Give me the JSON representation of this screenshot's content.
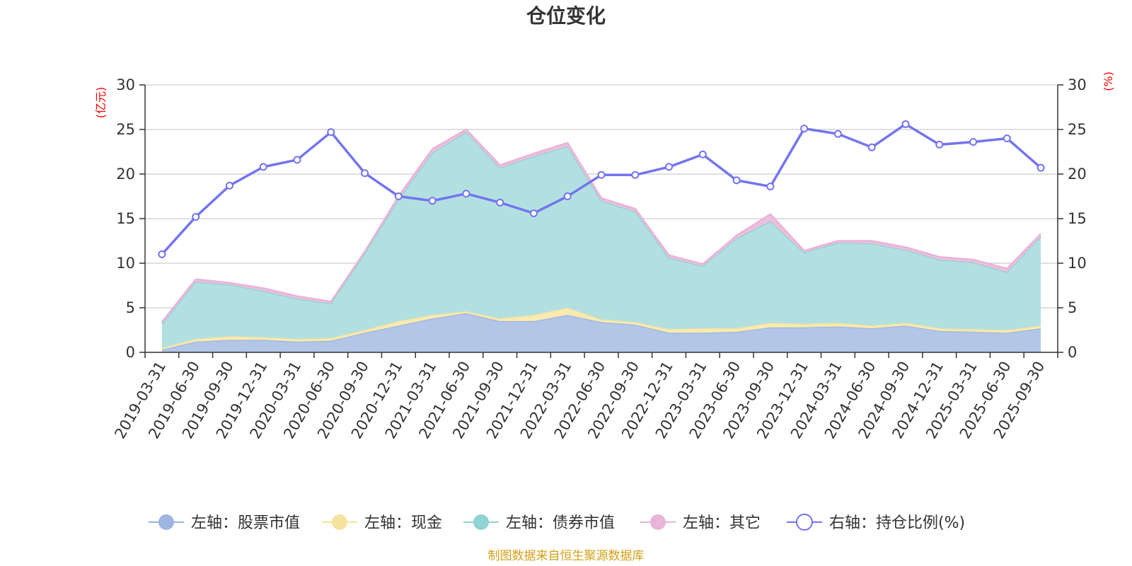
{
  "chart_data": {
    "type": "area",
    "title": "仓位变化",
    "left_axis_unit": "(亿元)",
    "right_axis_unit": "(%)",
    "ylim_left": [
      0,
      30
    ],
    "ylim_right": [
      0,
      30
    ],
    "y_ticks": [
      "0",
      "5",
      "10",
      "15",
      "20",
      "25",
      "30"
    ],
    "categories": [
      "2019-03-31",
      "2019-06-30",
      "2019-09-30",
      "2019-12-31",
      "2020-03-31",
      "2020-06-30",
      "2020-09-30",
      "2020-12-31",
      "2021-03-31",
      "2021-06-30",
      "2021-09-30",
      "2021-12-31",
      "2022-03-31",
      "2022-06-30",
      "2022-09-30",
      "2022-12-31",
      "2023-03-31",
      "2023-06-30",
      "2023-09-30",
      "2023-12-31",
      "2024-03-31",
      "2024-06-30",
      "2024-09-30",
      "2024-12-31",
      "2025-03-31",
      "2025-06-30",
      "2025-09-30"
    ],
    "stacked_series": [
      {
        "name": "左轴：股票市值",
        "color": "#9db5e0",
        "fill": "#b3c6e8",
        "values": [
          0.3,
          1.2,
          1.4,
          1.4,
          1.2,
          1.3,
          2.2,
          3.0,
          3.8,
          4.4,
          3.5,
          3.5,
          4.2,
          3.4,
          3.1,
          2.2,
          2.2,
          2.3,
          2.8,
          2.8,
          2.9,
          2.7,
          3.0,
          2.4,
          2.3,
          2.2,
          2.7
        ]
      },
      {
        "name": "左轴：现金",
        "color": "#f5e29c",
        "fill": "#f8eab0",
        "values": [
          0.2,
          0.3,
          0.4,
          0.3,
          0.3,
          0.3,
          0.3,
          0.5,
          0.4,
          0.2,
          0.3,
          0.7,
          0.8,
          0.3,
          0.3,
          0.4,
          0.5,
          0.4,
          0.5,
          0.4,
          0.4,
          0.3,
          0.3,
          0.3,
          0.3,
          0.3,
          0.3
        ]
      },
      {
        "name": "左轴：债券市值",
        "color": "#8fd3d3",
        "fill": "#b2e0e0",
        "values": [
          2.7,
          6.4,
          5.8,
          5.2,
          4.5,
          3.9,
          8.6,
          13.7,
          18.2,
          20.1,
          16.9,
          17.8,
          18.1,
          13.3,
          12.4,
          8.0,
          7.0,
          10.1,
          11.4,
          8.0,
          9.0,
          9.2,
          8.2,
          7.7,
          7.5,
          6.5,
          10.0
        ]
      },
      {
        "name": "左轴：其它",
        "color": "#e8b4d8",
        "fill": "#eebfdd",
        "values": [
          0.2,
          0.3,
          0.2,
          0.3,
          0.3,
          0.2,
          0.2,
          0.3,
          0.4,
          0.3,
          0.3,
          0.3,
          0.4,
          0.3,
          0.3,
          0.3,
          0.2,
          0.3,
          0.8,
          0.2,
          0.2,
          0.3,
          0.3,
          0.3,
          0.3,
          0.4,
          0.3
        ]
      }
    ],
    "line_series": {
      "name": "右轴：持仓比例(%)",
      "color": "#7474f0",
      "values": [
        11.0,
        15.2,
        18.7,
        20.8,
        21.6,
        24.7,
        20.1,
        17.5,
        17.0,
        17.8,
        16.8,
        15.6,
        17.5,
        19.9,
        19.9,
        20.8,
        22.2,
        19.3,
        18.6,
        25.1,
        24.5,
        23.0,
        25.6,
        23.3,
        23.6,
        24.0,
        20.7
      ]
    },
    "source_note": "制图数据来自恒生聚源数据库"
  }
}
